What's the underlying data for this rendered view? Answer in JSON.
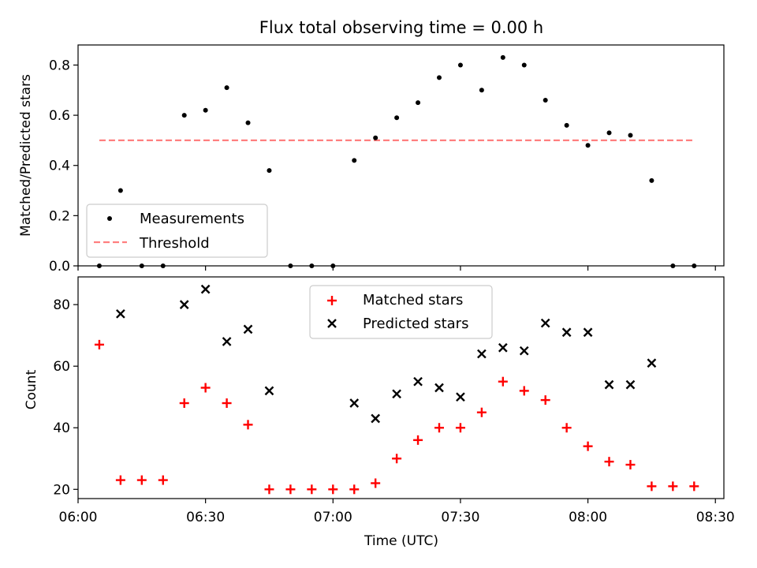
{
  "colors": {
    "background": "#ffffff",
    "measurements": "#000000",
    "threshold": "#ff7f7f",
    "matched": "#ff0000",
    "predicted": "#000000",
    "legend_border": "#cccccc"
  },
  "chart_data": [
    {
      "type": "scatter",
      "title": "Flux total observing time = 0.00 h",
      "xlabel": "",
      "ylabel": "Matched/Predicted stars",
      "xlim": [
        "06:00",
        "08:32"
      ],
      "ylim": [
        0,
        0.88
      ],
      "yticks": [
        "0.0",
        "0.2",
        "0.4",
        "0.6",
        "0.8"
      ],
      "legend_placement": "lower-left",
      "grid": false,
      "series": [
        {
          "name": "Measurements",
          "marker": "dot",
          "x": [
            "06:05",
            "06:10",
            "06:15",
            "06:20",
            "06:25",
            "06:30",
            "06:35",
            "06:40",
            "06:45",
            "06:50",
            "06:55",
            "07:00",
            "07:05",
            "07:10",
            "07:15",
            "07:20",
            "07:25",
            "07:30",
            "07:35",
            "07:40",
            "07:45",
            "07:50",
            "07:55",
            "08:00",
            "08:05",
            "08:10",
            "08:15",
            "08:20",
            "08:25"
          ],
          "y": [
            0.0,
            0.3,
            0.0,
            0.0,
            0.6,
            0.62,
            0.71,
            0.57,
            0.38,
            0.0,
            0.0,
            0.0,
            0.42,
            0.51,
            0.59,
            0.65,
            0.75,
            0.8,
            0.7,
            0.83,
            0.8,
            0.66,
            0.56,
            0.48,
            0.53,
            0.52,
            0.34,
            0.0,
            0.0
          ]
        },
        {
          "name": "Threshold",
          "marker": "dashed-line",
          "x": [
            "06:05",
            "08:25"
          ],
          "y": [
            0.5,
            0.5
          ]
        }
      ]
    },
    {
      "type": "scatter",
      "xlabel": "Time (UTC)",
      "ylabel": "Count",
      "xlim": [
        "06:00",
        "08:32"
      ],
      "ylim": [
        17,
        89
      ],
      "yticks": [
        "20",
        "40",
        "60",
        "80"
      ],
      "xticks": [
        "06:00",
        "06:30",
        "07:00",
        "07:30",
        "08:00",
        "08:30"
      ],
      "legend_placement": "upper-center",
      "grid": false,
      "series": [
        {
          "name": "Matched stars",
          "marker": "plus",
          "x": [
            "06:05",
            "06:10",
            "06:15",
            "06:20",
            "06:25",
            "06:30",
            "06:35",
            "06:40",
            "06:45",
            "06:50",
            "06:55",
            "07:00",
            "07:05",
            "07:10",
            "07:15",
            "07:20",
            "07:25",
            "07:30",
            "07:35",
            "07:40",
            "07:45",
            "07:50",
            "07:55",
            "08:00",
            "08:05",
            "08:10",
            "08:15",
            "08:20",
            "08:25"
          ],
          "y": [
            67,
            23,
            23,
            23,
            48,
            53,
            48,
            41,
            20,
            20,
            20,
            20,
            20,
            22,
            30,
            36,
            40,
            40,
            45,
            55,
            52,
            49,
            40,
            34,
            29,
            28,
            21,
            21,
            21
          ]
        },
        {
          "name": "Predicted stars",
          "marker": "x",
          "x": [
            "06:10",
            "06:25",
            "06:30",
            "06:35",
            "06:40",
            "06:45",
            "07:05",
            "07:10",
            "07:15",
            "07:20",
            "07:25",
            "07:30",
            "07:35",
            "07:40",
            "07:45",
            "07:50",
            "07:55",
            "08:00",
            "08:05",
            "08:10",
            "08:15"
          ],
          "y": [
            77,
            80,
            85,
            68,
            72,
            52,
            48,
            43,
            51,
            55,
            53,
            50,
            64,
            66,
            65,
            74,
            71,
            71,
            54,
            54,
            61
          ]
        }
      ]
    }
  ]
}
